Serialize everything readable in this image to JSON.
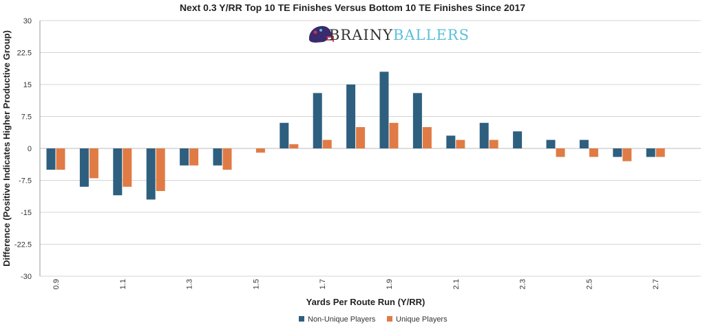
{
  "logo": {
    "brand_part1": "BRAINY",
    "brand_part2": "BALLERS",
    "brand_color1": "#333333",
    "brand_color2": "#5bc0d8",
    "icon": "football-helmet-icon"
  },
  "colors": {
    "non_unique": "#2e5f7f",
    "unique": "#e07b45",
    "grid": "#d4d4d4",
    "axis": "#999999"
  },
  "chart_data": {
    "type": "bar",
    "title": "Next 0.3 Y/RR Top 10 TE Finishes Versus Bottom 10 TE Finishes Since 2017",
    "xlabel": "Yards Per Route Run (Y/RR)",
    "ylabel": "Difference (Positive Indicates Higher Productive Group)",
    "ylim": [
      -30,
      30
    ],
    "yticks": [
      "30",
      "22.5",
      "15",
      "7.5",
      "0",
      "-7.5",
      "-15",
      "-22.5",
      "-30"
    ],
    "categories": [
      "0.9",
      "1",
      "1.1",
      "1.2",
      "1.3",
      "1.4",
      "1.5",
      "1.6",
      "1.7",
      "1.8",
      "1.9",
      "2",
      "2.1",
      "2.2",
      "2.3",
      "2.4",
      "2.5",
      "2.6",
      "2.7"
    ],
    "category_labels": [
      "0.9",
      "",
      "1.1",
      "",
      "1.3",
      "",
      "1.5",
      "",
      "1.7",
      "",
      "1.9",
      "",
      "2.1",
      "",
      "2.3",
      "",
      "2.5",
      "",
      "2.7"
    ],
    "series": [
      {
        "name": "Non-Unique Players",
        "values": [
          -5,
          -9,
          -11,
          -12,
          -4,
          -4,
          0,
          6,
          13,
          15,
          18,
          13,
          3,
          6,
          4,
          2,
          2,
          -2,
          -2
        ]
      },
      {
        "name": "Unique Players",
        "values": [
          -5,
          -7,
          -9,
          -10,
          -4,
          -5,
          -1,
          1,
          2,
          5,
          6,
          5,
          2,
          2,
          0,
          -2,
          -2,
          -3,
          -2
        ]
      }
    ],
    "grid": true,
    "legend": "bottom-center"
  }
}
